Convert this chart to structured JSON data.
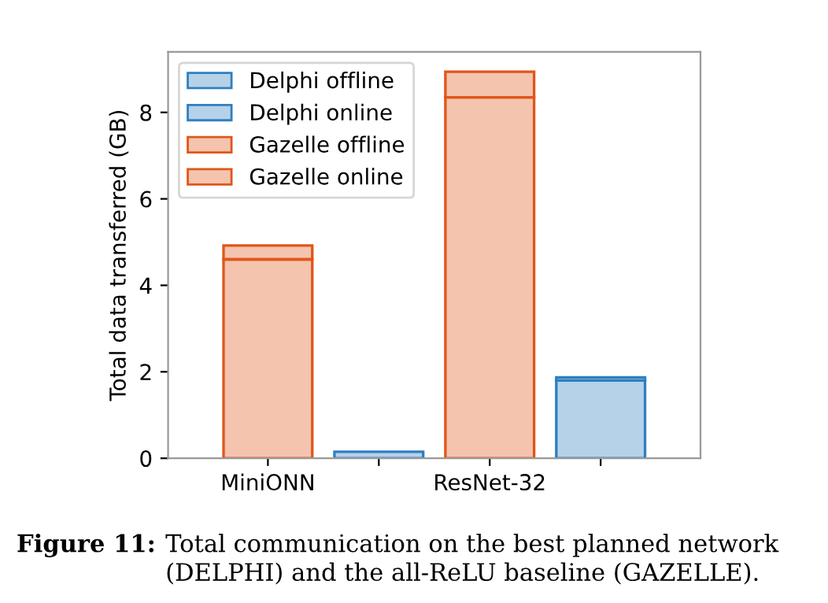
{
  "chart_data": {
    "type": "bar",
    "stacked": true,
    "ylabel": "Total data transferred (GB)",
    "categories": [
      "MiniONN",
      null,
      "ResNet-32",
      null
    ],
    "series": [
      {
        "name": "Delphi offline",
        "color": "#2f7fc1",
        "values": [
          null,
          null,
          null,
          1.8
        ]
      },
      {
        "name": "Delphi online",
        "color": "#2f7fc1",
        "values": [
          null,
          0.15,
          null,
          0.07
        ]
      },
      {
        "name": "Gazelle offline",
        "color": "#e0561a",
        "values": [
          4.6,
          null,
          8.35,
          null
        ]
      },
      {
        "name": "Gazelle online",
        "color": "#e0561a",
        "values": [
          0.32,
          null,
          0.59,
          null
        ]
      }
    ],
    "ylim": [
      0,
      9.4
    ],
    "yticks": [
      0,
      2,
      4,
      6,
      8
    ],
    "grid": false,
    "legend": "top left",
    "annotations": [
      "Figure 11:",
      "Total communication on the best planned network\n(DELPHI) and the all-ReLU baseline (GAZELLE)."
    ]
  }
}
